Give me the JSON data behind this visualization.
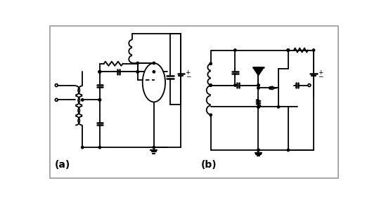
{
  "label_a": "(a)",
  "label_b": "(b)",
  "border_color": "#999999",
  "line_color": "#000000",
  "gray_color": "#aaaaaa",
  "dot_color": "#000000",
  "bg_color": "#ffffff",
  "fig_width": 5.39,
  "fig_height": 2.88,
  "lw": 1.3
}
